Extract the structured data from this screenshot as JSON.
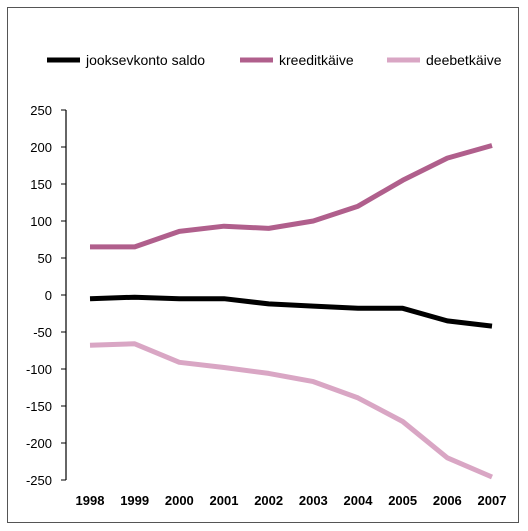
{
  "chart_data": {
    "type": "line",
    "title": "",
    "xlabel": "",
    "ylabel": "",
    "categories": [
      "1998",
      "1999",
      "2000",
      "2001",
      "2002",
      "2003",
      "2004",
      "2005",
      "2006",
      "2007"
    ],
    "y_ticks": [
      "250",
      "200",
      "150",
      "100",
      "50",
      "0",
      "-50",
      "-100",
      "-150",
      "-200",
      "-250"
    ],
    "ylim": [
      -250,
      250
    ],
    "grid": false,
    "legend_position": "top",
    "series": [
      {
        "name": "jooksevkonto saldo",
        "color": "#000000",
        "values": [
          -5,
          -3,
          -5,
          -5,
          -12,
          -15,
          -18,
          -18,
          -35,
          -42
        ]
      },
      {
        "name": "kreeditkäive",
        "color": "#b05f8c",
        "values": [
          65,
          65,
          86,
          93,
          90,
          100,
          120,
          155,
          185,
          202
        ]
      },
      {
        "name": "deebetkäive",
        "color": "#d9a6c4",
        "values": [
          -68,
          -66,
          -91,
          -98,
          -106,
          -117,
          -139,
          -171,
          -220,
          -246
        ]
      }
    ]
  }
}
